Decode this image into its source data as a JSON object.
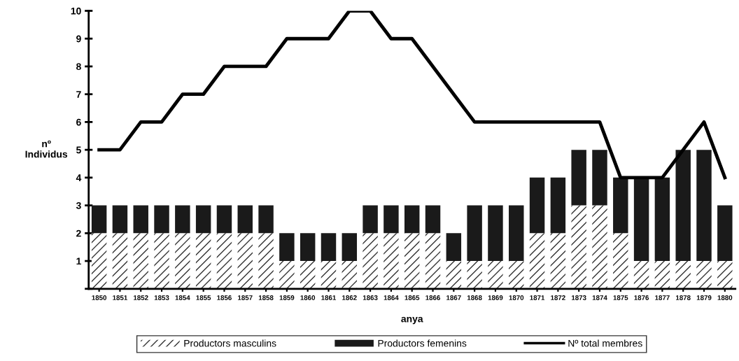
{
  "chart_data": {
    "type": "bar",
    "stacked": true,
    "xlabel": "anya",
    "ylabel": "nº\nIndividus",
    "categories": [
      "1850",
      "1851",
      "1852",
      "1853",
      "1854",
      "1855",
      "1856",
      "1857",
      "1858",
      "1859",
      "1860",
      "1861",
      "1862",
      "1863",
      "1864",
      "1865",
      "1866",
      "1867",
      "1868",
      "1869",
      "1870",
      "1871",
      "1872",
      "1873",
      "1874",
      "1875",
      "1876",
      "1877",
      "1878",
      "1879",
      "1880"
    ],
    "series": [
      {
        "name": "Productors masculins",
        "color": "#ffffff",
        "values": [
          2,
          2,
          2,
          2,
          2,
          2,
          2,
          2,
          2,
          1,
          1,
          1,
          1,
          2,
          2,
          2,
          2,
          1,
          1,
          1,
          1,
          2,
          2,
          3,
          3,
          2,
          1,
          1,
          1,
          1,
          1
        ]
      },
      {
        "name": "Productors femenins",
        "color": "#1a1a1a",
        "values": [
          1,
          1,
          1,
          1,
          1,
          1,
          1,
          1,
          1,
          1,
          1,
          1,
          1,
          1,
          1,
          1,
          1,
          1,
          2,
          2,
          2,
          2,
          2,
          2,
          2,
          2,
          3,
          3,
          4,
          4,
          2
        ]
      },
      {
        "name": "Nº total membres",
        "type": "line",
        "color": "#000000",
        "values": [
          5,
          5,
          6,
          6,
          7,
          7,
          8,
          8,
          8,
          9,
          9,
          9,
          10,
          10,
          9,
          9,
          8,
          7,
          6,
          6,
          6,
          6,
          6,
          6,
          6,
          4,
          4,
          4,
          5,
          6,
          4
        ]
      }
    ],
    "ylim": [
      0,
      10
    ],
    "yticks": [
      {
        "value": 0,
        "label": null
      },
      1,
      2,
      3,
      4,
      5,
      6,
      7,
      8,
      9,
      10
    ],
    "grid": false,
    "legend": "bottom",
    "marker": "none",
    "line_style": "solid"
  }
}
